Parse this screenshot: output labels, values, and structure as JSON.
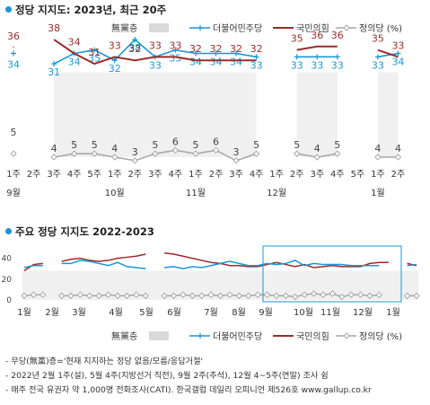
{
  "chart1": {
    "title": "정당 지지도: 2023년, 최근 20주",
    "legend": [
      {
        "label": "無黨층",
        "color": "#d9d9d9"
      },
      {
        "label": "더불어민주당",
        "color": "#1a96d6"
      },
      {
        "label": "국민의힘",
        "color": "#9b2b2b"
      },
      {
        "label": "정의당 (%)",
        "color": "#a8a8a8"
      }
    ]
  },
  "chart2": {
    "title": "주요 정당 지지도 2022-2023",
    "legend": [
      {
        "label": "無黨층",
        "color": "#d9d9d9"
      },
      {
        "label": "더불어민주당",
        "color": "#1a96d6"
      },
      {
        "label": "국민의힘",
        "color": "#9b2b2b"
      },
      {
        "label": "정의당 (%)",
        "color": "#a8a8a8"
      }
    ]
  },
  "notes": [
    "- 무당(無黨)층='현재 지지하는 정당 없음/모름/응답거절'",
    "- 2022년 2월 1주(설), 5월 4주(지방선거 직전), 9월 2주(추석), 12월 4~5주(연말) 조사 쉼",
    "- 매주 전국 유권자 약 1,000명 전화조사(CATI). 한국갤럽 데일리 오피니언 제526호 www.gallup.co.kr"
  ],
  "chart_data": [
    {
      "type": "line",
      "title": "정당 지지도: 2023년, 최근 20주",
      "categories": [
        "1주",
        "2주",
        "3주",
        "4주",
        "5주",
        "1주",
        "2주",
        "3주",
        "4주",
        "1주",
        "2주",
        "3주",
        "4주",
        "1주",
        "2주",
        "3주",
        "4주",
        "5주",
        "1주",
        "2주"
      ],
      "month_labels": [
        {
          "label": "9월",
          "at": 0
        },
        {
          "label": "10월",
          "at": 5
        },
        {
          "label": "11월",
          "at": 9
        },
        {
          "label": "12월",
          "at": 13
        },
        {
          "label": "1월",
          "at": 18
        }
      ],
      "series": [
        {
          "name": "더불어민주당",
          "color": "#1a96d6",
          "values": [
            34,
            null,
            31,
            34,
            35,
            32,
            38,
            33,
            35,
            34,
            34,
            34,
            33,
            null,
            33,
            33,
            33,
            null,
            33,
            34
          ]
        },
        {
          "name": "국민의힘",
          "color": "#9b2b2b",
          "values": [
            36,
            null,
            38,
            34,
            31,
            33,
            32,
            33,
            33,
            32,
            32,
            32,
            32,
            null,
            35,
            36,
            36,
            null,
            35,
            33
          ]
        },
        {
          "name": "정의당 (%)",
          "color": "#a8a8a8",
          "values": [
            5,
            null,
            4,
            5,
            5,
            4,
            3,
            5,
            6,
            5,
            6,
            3,
            5,
            null,
            5,
            4,
            5,
            null,
            4,
            4
          ]
        },
        {
          "name": "無黨층",
          "color": "#d9d9d9",
          "values": [
            null,
            null,
            null,
            null,
            null,
            null,
            null,
            null,
            null,
            null,
            null,
            null,
            null,
            null,
            null,
            null,
            null,
            null,
            null,
            null
          ]
        }
      ]
    },
    {
      "type": "line",
      "title": "주요 정당 지지도 2022-2023",
      "x_labels": [
        "1월",
        "2월",
        "3월",
        "4월",
        "5월",
        "6월",
        "7월",
        "8월",
        "9월",
        "10월",
        "11월",
        "12월",
        "1월"
      ],
      "y_ticks": [
        0,
        20,
        40
      ],
      "ylim": [
        0,
        50
      ],
      "series": [
        {
          "name": "국민의힘",
          "color": "#9b2b2b",
          "values": [
            28,
            34,
            35,
            null,
            37,
            39,
            40,
            38,
            37,
            38,
            40,
            41,
            42,
            44,
            null,
            45,
            44,
            42,
            40,
            38,
            36,
            35,
            33,
            33,
            32,
            32,
            34,
            36,
            34,
            32,
            34,
            31,
            32,
            33,
            32,
            32,
            32,
            35,
            36,
            36,
            null,
            35,
            33
          ]
        },
        {
          "name": "더불어민주당",
          "color": "#1a96d6",
          "values": [
            31,
            33,
            33,
            null,
            35,
            35,
            38,
            37,
            35,
            33,
            36,
            32,
            31,
            30,
            null,
            31,
            32,
            30,
            32,
            31,
            33,
            35,
            37,
            35,
            33,
            33,
            35,
            34,
            35,
            38,
            33,
            35,
            34,
            34,
            34,
            33,
            33,
            33,
            33,
            null,
            null,
            33,
            34
          ]
        },
        {
          "name": "정의당 (%)",
          "color": "#a8a8a8",
          "values": [
            4,
            5,
            5,
            null,
            4,
            4,
            5,
            4,
            4,
            5,
            4,
            4,
            5,
            4,
            null,
            4,
            4,
            5,
            4,
            4,
            5,
            4,
            5,
            4,
            4,
            5,
            5,
            4,
            4,
            3,
            5,
            6,
            5,
            6,
            3,
            5,
            5,
            4,
            5,
            null,
            null,
            4,
            4
          ]
        }
      ],
      "highlight_range": "2023년 9월 ~ 2024년 1월"
    }
  ]
}
